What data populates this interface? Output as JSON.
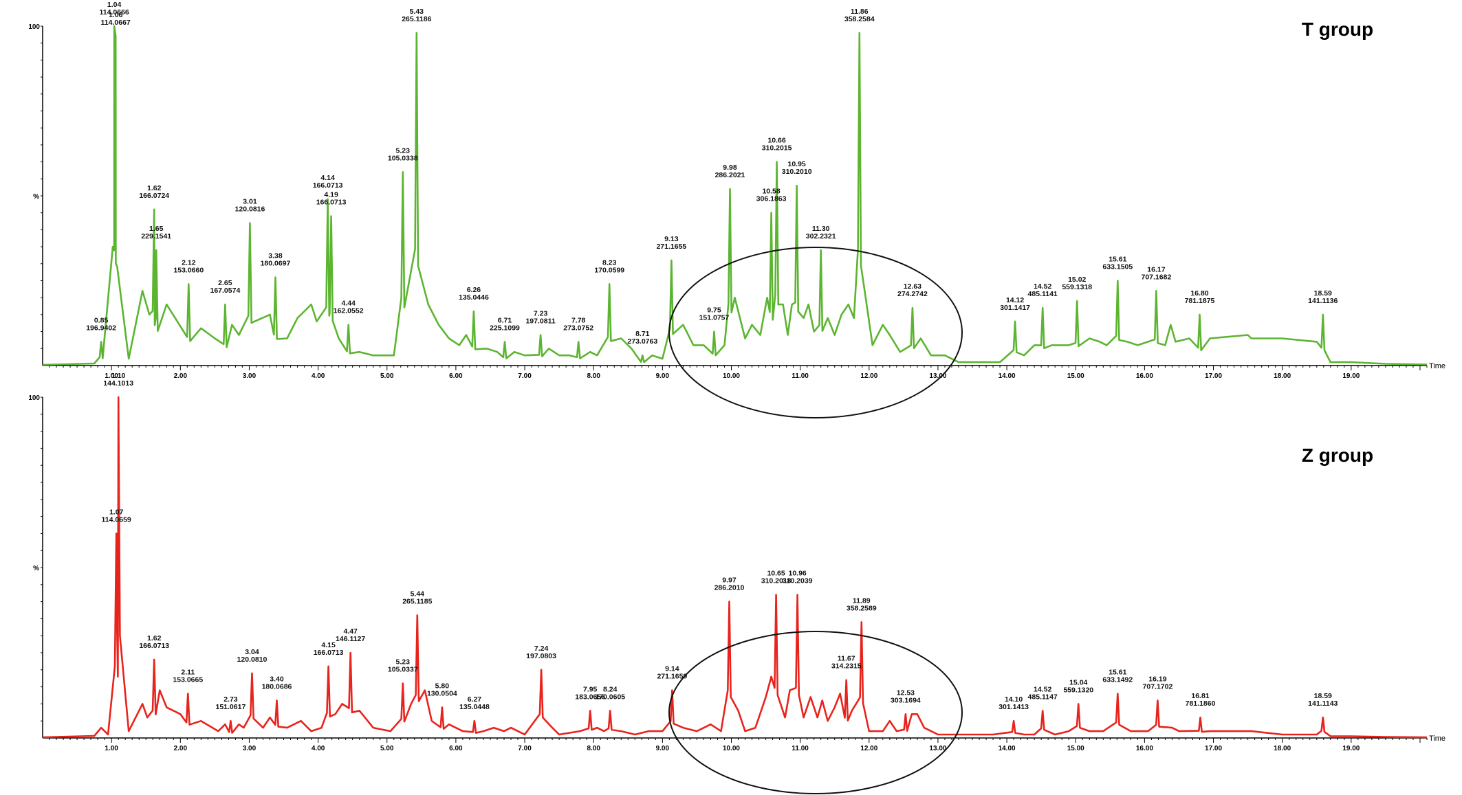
{
  "colors": {
    "T": "#5cb531",
    "Z": "#e8231c",
    "axis": "#000000"
  },
  "chart_data": [
    {
      "type": "line",
      "title": "T group",
      "xlabel": "Time",
      "ylabel": "%",
      "xlim": [
        0,
        20.1
      ],
      "ylim": [
        0,
        100
      ],
      "x_ticks": [
        "1.00",
        "2.00",
        "3.00",
        "4.00",
        "5.00",
        "6.00",
        "7.00",
        "8.00",
        "9.00",
        "10.00",
        "11.00",
        "12.00",
        "13.00",
        "14.00",
        "15.00",
        "16.00",
        "17.00",
        "18.00",
        "19.00"
      ],
      "y_ticks": [
        "100",
        "%"
      ],
      "grid": false,
      "annotations": [
        {
          "time": "0.85",
          "mz": "196.9402",
          "x": 0.85,
          "y": 7
        },
        {
          "time": "1.04",
          "mz": "114.0666",
          "x": 1.04,
          "y": 100
        },
        {
          "time": "1.06",
          "mz": "114.0667",
          "x": 1.06,
          "y": 97
        },
        {
          "time": "1.62",
          "mz": "166.0724",
          "x": 1.62,
          "y": 46
        },
        {
          "time": "1.65",
          "mz": "229.1541",
          "x": 1.65,
          "y": 34
        },
        {
          "time": "2.12",
          "mz": "153.0660",
          "x": 2.12,
          "y": 24
        },
        {
          "time": "2.65",
          "mz": "167.0574",
          "x": 2.65,
          "y": 18
        },
        {
          "time": "3.01",
          "mz": "120.0816",
          "x": 3.01,
          "y": 42
        },
        {
          "time": "3.38",
          "mz": "180.0697",
          "x": 3.38,
          "y": 26
        },
        {
          "time": "4.14",
          "mz": "166.0713",
          "x": 4.14,
          "y": 49
        },
        {
          "time": "4.19",
          "mz": "166.0713",
          "x": 4.19,
          "y": 44
        },
        {
          "time": "4.44",
          "mz": "162.0552",
          "x": 4.44,
          "y": 12
        },
        {
          "time": "5.23",
          "mz": "105.0338",
          "x": 5.23,
          "y": 57
        },
        {
          "time": "5.43",
          "mz": "265.1186",
          "x": 5.43,
          "y": 98
        },
        {
          "time": "6.26",
          "mz": "135.0446",
          "x": 6.26,
          "y": 16
        },
        {
          "time": "6.71",
          "mz": "225.1099",
          "x": 6.71,
          "y": 7
        },
        {
          "time": "7.23",
          "mz": "197.0811",
          "x": 7.23,
          "y": 9
        },
        {
          "time": "7.78",
          "mz": "273.0752",
          "x": 7.78,
          "y": 7
        },
        {
          "time": "8.23",
          "mz": "170.0599",
          "x": 8.23,
          "y": 24
        },
        {
          "time": "8.71",
          "mz": "273.0763",
          "x": 8.71,
          "y": 3
        },
        {
          "time": "9.13",
          "mz": "271.1655",
          "x": 9.13,
          "y": 31
        },
        {
          "time": "9.75",
          "mz": "151.0757",
          "x": 9.75,
          "y": 10
        },
        {
          "time": "9.98",
          "mz": "286.2021",
          "x": 9.98,
          "y": 52
        },
        {
          "time": "10.58",
          "mz": "306.1863",
          "x": 10.58,
          "y": 45
        },
        {
          "time": "10.66",
          "mz": "310.2015",
          "x": 10.66,
          "y": 60
        },
        {
          "time": "10.95",
          "mz": "310.2010",
          "x": 10.95,
          "y": 53
        },
        {
          "time": "11.30",
          "mz": "302.2321",
          "x": 11.3,
          "y": 34
        },
        {
          "time": "11.86",
          "mz": "358.2584",
          "x": 11.86,
          "y": 98
        },
        {
          "time": "12.63",
          "mz": "274.2742",
          "x": 12.63,
          "y": 17
        },
        {
          "time": "14.12",
          "mz": "301.1417",
          "x": 14.12,
          "y": 13
        },
        {
          "time": "14.52",
          "mz": "485.1141",
          "x": 14.52,
          "y": 17
        },
        {
          "time": "15.02",
          "mz": "559.1318",
          "x": 15.02,
          "y": 19
        },
        {
          "time": "15.61",
          "mz": "633.1505",
          "x": 15.61,
          "y": 25
        },
        {
          "time": "16.17",
          "mz": "707.1682",
          "x": 16.17,
          "y": 22
        },
        {
          "time": "16.80",
          "mz": "781.1875",
          "x": 16.8,
          "y": 15
        },
        {
          "time": "18.59",
          "mz": "141.1136",
          "x": 18.59,
          "y": 15
        }
      ],
      "baseline_features": [
        {
          "x": 0.75,
          "y": 0.6
        },
        {
          "x": 1.25,
          "y": 2
        },
        {
          "x": 1.45,
          "y": 22
        },
        {
          "x": 1.55,
          "y": 15
        },
        {
          "x": 1.8,
          "y": 18
        },
        {
          "x": 2.3,
          "y": 11
        },
        {
          "x": 2.5,
          "y": 8
        },
        {
          "x": 2.75,
          "y": 12
        },
        {
          "x": 2.85,
          "y": 9
        },
        {
          "x": 3.3,
          "y": 15
        },
        {
          "x": 3.55,
          "y": 8
        },
        {
          "x": 3.7,
          "y": 14
        },
        {
          "x": 3.8,
          "y": 16
        },
        {
          "x": 3.9,
          "y": 18
        },
        {
          "x": 3.98,
          "y": 13
        },
        {
          "x": 4.3,
          "y": 8
        },
        {
          "x": 4.6,
          "y": 4
        },
        {
          "x": 4.8,
          "y": 3
        },
        {
          "x": 5.1,
          "y": 3
        },
        {
          "x": 5.6,
          "y": 18
        },
        {
          "x": 5.75,
          "y": 12
        },
        {
          "x": 5.9,
          "y": 8
        },
        {
          "x": 6.05,
          "y": 6
        },
        {
          "x": 6.15,
          "y": 9
        },
        {
          "x": 6.45,
          "y": 5
        },
        {
          "x": 6.6,
          "y": 4
        },
        {
          "x": 6.85,
          "y": 4
        },
        {
          "x": 7.0,
          "y": 3
        },
        {
          "x": 7.35,
          "y": 5
        },
        {
          "x": 7.5,
          "y": 3
        },
        {
          "x": 7.65,
          "y": 3
        },
        {
          "x": 7.95,
          "y": 4
        },
        {
          "x": 8.05,
          "y": 3
        },
        {
          "x": 8.4,
          "y": 8
        },
        {
          "x": 8.55,
          "y": 5
        },
        {
          "x": 8.85,
          "y": 3
        },
        {
          "x": 9.0,
          "y": 2
        },
        {
          "x": 9.3,
          "y": 12
        },
        {
          "x": 9.45,
          "y": 6
        },
        {
          "x": 9.6,
          "y": 6
        },
        {
          "x": 9.9,
          "y": 6
        },
        {
          "x": 10.05,
          "y": 20
        },
        {
          "x": 10.2,
          "y": 8
        },
        {
          "x": 10.3,
          "y": 12
        },
        {
          "x": 10.42,
          "y": 9
        },
        {
          "x": 10.52,
          "y": 20
        },
        {
          "x": 10.75,
          "y": 18
        },
        {
          "x": 10.82,
          "y": 9
        },
        {
          "x": 10.88,
          "y": 18
        },
        {
          "x": 11.05,
          "y": 14
        },
        {
          "x": 11.12,
          "y": 18
        },
        {
          "x": 11.2,
          "y": 10
        },
        {
          "x": 11.4,
          "y": 14
        },
        {
          "x": 11.5,
          "y": 9
        },
        {
          "x": 11.6,
          "y": 15
        },
        {
          "x": 11.7,
          "y": 18
        },
        {
          "x": 11.78,
          "y": 14
        },
        {
          "x": 11.95,
          "y": 20
        },
        {
          "x": 12.05,
          "y": 6
        },
        {
          "x": 12.2,
          "y": 12
        },
        {
          "x": 12.3,
          "y": 9
        },
        {
          "x": 12.45,
          "y": 4
        },
        {
          "x": 12.75,
          "y": 8
        },
        {
          "x": 12.9,
          "y": 3
        },
        {
          "x": 13.1,
          "y": 3
        },
        {
          "x": 13.3,
          "y": 1
        },
        {
          "x": 13.6,
          "y": 1
        },
        {
          "x": 13.9,
          "y": 1
        },
        {
          "x": 14.25,
          "y": 3
        },
        {
          "x": 14.4,
          "y": 6
        },
        {
          "x": 14.65,
          "y": 6
        },
        {
          "x": 14.9,
          "y": 6
        },
        {
          "x": 15.2,
          "y": 8
        },
        {
          "x": 15.35,
          "y": 7
        },
        {
          "x": 15.45,
          "y": 6
        },
        {
          "x": 15.75,
          "y": 7
        },
        {
          "x": 15.9,
          "y": 6
        },
        {
          "x": 16.05,
          "y": 7
        },
        {
          "x": 16.3,
          "y": 6
        },
        {
          "x": 16.38,
          "y": 12
        },
        {
          "x": 16.45,
          "y": 7
        },
        {
          "x": 16.65,
          "y": 8
        },
        {
          "x": 16.95,
          "y": 8
        },
        {
          "x": 17.5,
          "y": 9
        },
        {
          "x": 17.55,
          "y": 8
        },
        {
          "x": 18.0,
          "y": 8
        },
        {
          "x": 18.5,
          "y": 7
        },
        {
          "x": 18.7,
          "y": 1
        },
        {
          "x": 19.0,
          "y": 1
        },
        {
          "x": 19.5,
          "y": 0.5
        },
        {
          "x": 20.1,
          "y": 0.3
        }
      ]
    },
    {
      "type": "line",
      "title": "Z group",
      "xlabel": "Time",
      "ylabel": "%",
      "xlim": [
        0,
        20.1
      ],
      "ylim": [
        0,
        100
      ],
      "x_ticks": [
        "1.00",
        "2.00",
        "3.00",
        "4.00",
        "5.00",
        "6.00",
        "7.00",
        "8.00",
        "9.00",
        "10.00",
        "11.00",
        "12.00",
        "13.00",
        "14.00",
        "15.00",
        "16.00",
        "17.00",
        "18.00",
        "19.00"
      ],
      "y_ticks": [
        "100",
        "%"
      ],
      "grid": false,
      "annotations": [
        {
          "time": "1.07",
          "mz": "114.0659",
          "x": 1.07,
          "y": 60
        },
        {
          "time": "1.10",
          "mz": "144.1013",
          "x": 1.1,
          "y": 100
        },
        {
          "time": "1.62",
          "mz": "166.0713",
          "x": 1.62,
          "y": 23
        },
        {
          "time": "2.11",
          "mz": "153.0665",
          "x": 2.11,
          "y": 13
        },
        {
          "time": "2.73",
          "mz": "151.0617",
          "x": 2.73,
          "y": 5
        },
        {
          "time": "3.04",
          "mz": "120.0810",
          "x": 3.04,
          "y": 19
        },
        {
          "time": "3.40",
          "mz": "180.0686",
          "x": 3.4,
          "y": 11
        },
        {
          "time": "4.15",
          "mz": "166.0713",
          "x": 4.15,
          "y": 21
        },
        {
          "time": "4.47",
          "mz": "146.1127",
          "x": 4.47,
          "y": 25
        },
        {
          "time": "5.23",
          "mz": "105.0337",
          "x": 5.23,
          "y": 16
        },
        {
          "time": "5.44",
          "mz": "265.1185",
          "x": 5.44,
          "y": 36
        },
        {
          "time": "5.80",
          "mz": "130.0504",
          "x": 5.8,
          "y": 9
        },
        {
          "time": "6.27",
          "mz": "135.0448",
          "x": 6.27,
          "y": 5
        },
        {
          "time": "7.24",
          "mz": "197.0803",
          "x": 7.24,
          "y": 20
        },
        {
          "time": "7.95",
          "mz": "183.0656",
          "x": 7.95,
          "y": 8
        },
        {
          "time": "8.24",
          "mz": "170.0605",
          "x": 8.24,
          "y": 8
        },
        {
          "time": "9.14",
          "mz": "271.1659",
          "x": 9.14,
          "y": 14
        },
        {
          "time": "9.97",
          "mz": "286.2010",
          "x": 9.97,
          "y": 40
        },
        {
          "time": "10.65",
          "mz": "310.2018",
          "x": 10.65,
          "y": 42
        },
        {
          "time": "10.96",
          "mz": "310.2039",
          "x": 10.96,
          "y": 42
        },
        {
          "time": "11.67",
          "mz": "314.2315",
          "x": 11.67,
          "y": 17
        },
        {
          "time": "11.89",
          "mz": "358.2589",
          "x": 11.89,
          "y": 34
        },
        {
          "time": "12.53",
          "mz": "303.1694",
          "x": 12.53,
          "y": 7
        },
        {
          "time": "14.10",
          "mz": "301.1413",
          "x": 14.1,
          "y": 5
        },
        {
          "time": "14.52",
          "mz": "485.1147",
          "x": 14.52,
          "y": 8
        },
        {
          "time": "15.04",
          "mz": "559.1320",
          "x": 15.04,
          "y": 10
        },
        {
          "time": "15.61",
          "mz": "633.1492",
          "x": 15.61,
          "y": 13
        },
        {
          "time": "16.19",
          "mz": "707.1702",
          "x": 16.19,
          "y": 11
        },
        {
          "time": "16.81",
          "mz": "781.1860",
          "x": 16.81,
          "y": 6
        },
        {
          "time": "18.59",
          "mz": "141.1143",
          "x": 18.59,
          "y": 6
        }
      ],
      "baseline_features": [
        {
          "x": 0.75,
          "y": 0.6
        },
        {
          "x": 0.85,
          "y": 3
        },
        {
          "x": 0.95,
          "y": 1
        },
        {
          "x": 1.25,
          "y": 2
        },
        {
          "x": 1.45,
          "y": 10
        },
        {
          "x": 1.52,
          "y": 6
        },
        {
          "x": 1.7,
          "y": 14
        },
        {
          "x": 1.8,
          "y": 9
        },
        {
          "x": 2.0,
          "y": 7
        },
        {
          "x": 2.3,
          "y": 5
        },
        {
          "x": 2.55,
          "y": 2
        },
        {
          "x": 2.65,
          "y": 4
        },
        {
          "x": 2.85,
          "y": 4
        },
        {
          "x": 2.92,
          "y": 3
        },
        {
          "x": 3.2,
          "y": 3
        },
        {
          "x": 3.3,
          "y": 6
        },
        {
          "x": 3.55,
          "y": 3
        },
        {
          "x": 3.75,
          "y": 5
        },
        {
          "x": 3.9,
          "y": 2
        },
        {
          "x": 4.05,
          "y": 3
        },
        {
          "x": 4.25,
          "y": 7
        },
        {
          "x": 4.35,
          "y": 10
        },
        {
          "x": 4.6,
          "y": 8
        },
        {
          "x": 4.8,
          "y": 3
        },
        {
          "x": 5.05,
          "y": 2
        },
        {
          "x": 5.35,
          "y": 10
        },
        {
          "x": 5.55,
          "y": 14
        },
        {
          "x": 5.65,
          "y": 5
        },
        {
          "x": 5.9,
          "y": 4
        },
        {
          "x": 6.1,
          "y": 2
        },
        {
          "x": 6.4,
          "y": 2
        },
        {
          "x": 6.55,
          "y": 3
        },
        {
          "x": 6.7,
          "y": 2
        },
        {
          "x": 6.8,
          "y": 3
        },
        {
          "x": 7.0,
          "y": 1
        },
        {
          "x": 7.4,
          "y": 3
        },
        {
          "x": 7.5,
          "y": 1
        },
        {
          "x": 7.8,
          "y": 2
        },
        {
          "x": 8.05,
          "y": 3
        },
        {
          "x": 8.15,
          "y": 2
        },
        {
          "x": 8.4,
          "y": 2
        },
        {
          "x": 8.6,
          "y": 1
        },
        {
          "x": 8.8,
          "y": 2
        },
        {
          "x": 9.0,
          "y": 2
        },
        {
          "x": 9.3,
          "y": 3
        },
        {
          "x": 9.5,
          "y": 2
        },
        {
          "x": 9.7,
          "y": 4
        },
        {
          "x": 9.85,
          "y": 2
        },
        {
          "x": 10.1,
          "y": 8
        },
        {
          "x": 10.2,
          "y": 2
        },
        {
          "x": 10.35,
          "y": 3
        },
        {
          "x": 10.5,
          "y": 12
        },
        {
          "x": 10.58,
          "y": 18
        },
        {
          "x": 10.78,
          "y": 6
        },
        {
          "x": 10.85,
          "y": 14
        },
        {
          "x": 11.05,
          "y": 6
        },
        {
          "x": 11.15,
          "y": 12
        },
        {
          "x": 11.25,
          "y": 6
        },
        {
          "x": 11.32,
          "y": 11
        },
        {
          "x": 11.4,
          "y": 5
        },
        {
          "x": 11.5,
          "y": 9
        },
        {
          "x": 11.58,
          "y": 13
        },
        {
          "x": 11.75,
          "y": 8
        },
        {
          "x": 12.0,
          "y": 2
        },
        {
          "x": 12.2,
          "y": 2
        },
        {
          "x": 12.3,
          "y": 5
        },
        {
          "x": 12.4,
          "y": 2
        },
        {
          "x": 12.62,
          "y": 7
        },
        {
          "x": 12.7,
          "y": 7
        },
        {
          "x": 12.8,
          "y": 3
        },
        {
          "x": 13.0,
          "y": 1
        },
        {
          "x": 13.4,
          "y": 1
        },
        {
          "x": 13.8,
          "y": 1
        },
        {
          "x": 14.25,
          "y": 1
        },
        {
          "x": 14.4,
          "y": 1
        },
        {
          "x": 14.7,
          "y": 1
        },
        {
          "x": 14.9,
          "y": 2
        },
        {
          "x": 15.2,
          "y": 2
        },
        {
          "x": 15.4,
          "y": 2
        },
        {
          "x": 15.8,
          "y": 2
        },
        {
          "x": 16.05,
          "y": 2
        },
        {
          "x": 16.4,
          "y": 3
        },
        {
          "x": 16.5,
          "y": 2
        },
        {
          "x": 16.95,
          "y": 2
        },
        {
          "x": 17.5,
          "y": 2
        },
        {
          "x": 17.55,
          "y": 2
        },
        {
          "x": 18.0,
          "y": 1
        },
        {
          "x": 18.5,
          "y": 1
        },
        {
          "x": 18.7,
          "y": 0.5
        },
        {
          "x": 19.0,
          "y": 0.5
        },
        {
          "x": 19.5,
          "y": 0.3
        },
        {
          "x": 20.1,
          "y": 0.2
        }
      ]
    }
  ]
}
